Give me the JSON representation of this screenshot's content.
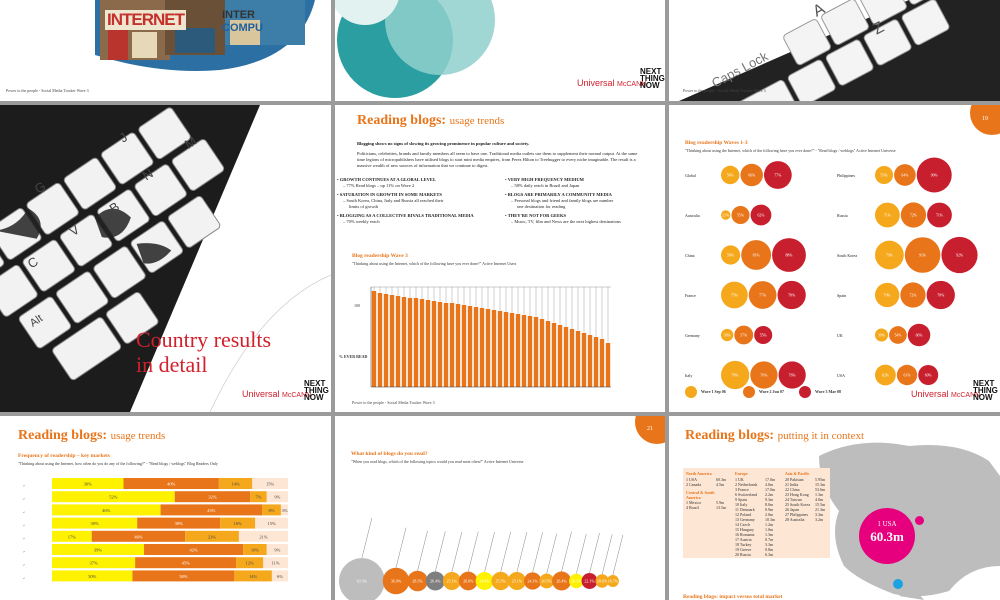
{
  "common": {
    "footer": "Power to the people - Social Media Tracker Wave 3",
    "logo_main": "Universal",
    "logo_sub": "McCANN",
    "ntn": [
      "NEXT",
      "THING",
      "NOW"
    ]
  },
  "slide1": {
    "sign_big": "INTERNET",
    "sign_side": "INTER",
    "sign_side2": "COMPU"
  },
  "slide3": {
    "keys": [
      "A",
      "Z",
      "Caps Lock"
    ]
  },
  "slide4": {
    "title_line1": "Country results",
    "title_line2": "in detail",
    "keys": [
      "J",
      "M",
      "N",
      "B",
      "G",
      "V",
      "C",
      "Alt"
    ]
  },
  "slide5": {
    "title_main": "Reading blogs:",
    "title_sub": "usage trends",
    "intro_bold": "Blogging shows no signs of slowing its growing prominence in popular culture and society.",
    "intro_text": "Politicians, celebrities, brands and family members all seem to have one. Traditional media outlets use them to supplement their normal output. At the same time legions of micropublishers have utilised blogs to start mini media empires, from Perez Hilton to Treehugger to every niche imaginable. The result is a massive wealth of new sources of information that we continue to digest.",
    "bullets_left": [
      {
        "head": "GROWTH CONTINUES AT A GLOBAL LEVEL",
        "items": [
          "77% Read blogs – up 11% on Wave 2"
        ]
      },
      {
        "head": "SATURATION IN GROWTH IN SOME MARKETS",
        "items": [
          "South Korea, China, Italy and Russia all reached their",
          "limits of growth"
        ]
      },
      {
        "head": "BLOGGING AS A COLLECTIVE RIVALS TRADITIONAL MEDIA",
        "items": [
          "70% weekly reach"
        ]
      }
    ],
    "bullets_right": [
      {
        "head": "VERY HIGH FREQUENCY MEDIUM",
        "items": [
          "58% daily reach in Brazil and Japan"
        ]
      },
      {
        "head": "BLOGS ARE PRIMARILY A COMMUNITY MEDIA",
        "items": [
          "Personal blogs and friend and family blogs are number",
          "one destination for reading"
        ]
      },
      {
        "head": "THEY'RE NOT FOR GEEKS",
        "items": [
          "Music, TV, film and News are the next highest destinations"
        ]
      }
    ],
    "chart_title": "Blog readership Wave 3",
    "chart_question": "\"Thinking about using the Internet, which of the following have you ever done?\" Active Internet Users",
    "y_top": "100",
    "y_label": "% EVER READ"
  },
  "chart_data": [
    {
      "type": "bar",
      "title": "Blog readership Wave 3",
      "ylabel": "% EVER READ",
      "ylim": [
        0,
        100
      ],
      "values": [
        96,
        94,
        93,
        92,
        91,
        90,
        89,
        89,
        88,
        87,
        86,
        85,
        84,
        84,
        83,
        82,
        81,
        80,
        79,
        78,
        77,
        76,
        75,
        74,
        73,
        72,
        71,
        70,
        68,
        66,
        64,
        62,
        60,
        58,
        56,
        54,
        52,
        50,
        48,
        44
      ]
    },
    {
      "type": "scatter",
      "title": "Blog readership Waves 1-3",
      "legend": [
        "Wave 1 Sep 06",
        "Wave 2 Jun 07",
        "Wave 3 Mar 08"
      ],
      "countries": [
        {
          "name": "Global",
          "values": [
            56,
            66,
            77
          ]
        },
        {
          "name": "Australia",
          "values": [
            21,
            55,
            62
          ]
        },
        {
          "name": "China",
          "values": [
            58,
            81,
            88
          ]
        },
        {
          "name": "France",
          "values": [
            75,
            77,
            78
          ]
        },
        {
          "name": "Germany",
          "values": [
            36,
            57,
            55
          ]
        },
        {
          "name": "Italy",
          "values": [
            78,
            76,
            76
          ]
        },
        {
          "name": "Philippines",
          "values": [
            55,
            64,
            90
          ]
        },
        {
          "name": "Russia",
          "values": [
            71,
            72,
            71
          ]
        },
        {
          "name": "South Korea",
          "values": [
            79,
            91,
            92
          ]
        },
        {
          "name": "Spain",
          "values": [
            70,
            72,
            78
          ]
        },
        {
          "name": "UK",
          "values": [
            39,
            54,
            66
          ]
        },
        {
          "name": "USA",
          "values": [
            62,
            61,
            60
          ]
        }
      ]
    },
    {
      "type": "bar",
      "title": "Frequency of readership – key markets",
      "rows": [
        [
          30,
          40,
          14,
          15
        ],
        [
          52,
          32,
          7,
          9
        ],
        [
          46,
          43,
          8,
          3
        ],
        [
          39,
          38,
          16,
          15
        ],
        [
          17,
          40,
          23,
          21
        ],
        [
          39,
          42,
          10,
          9
        ],
        [
          37,
          45,
          12,
          11
        ],
        [
          30,
          38,
          14,
          6
        ]
      ]
    },
    {
      "type": "scatter",
      "title": "What kind of blogs do you read?",
      "values": [
        63.5,
        36.9,
        28.5,
        26.4,
        25.1,
        26.0,
        24.9,
        25.5,
        25.1,
        24.1,
        20.5,
        26.4,
        20.1,
        22.1,
        18.6,
        16.7
      ]
    }
  ],
  "slide6": {
    "page": "19",
    "title": "Blog readership Waves 1-3",
    "question": "\"Thinking about using the Internet, which of the following have you ever done?\" - \"Read blogs / weblogs\" Active Internet Universe",
    "legend": [
      "Wave 1 Sep 06",
      "Wave 2 Jun 07",
      "Wave 3 Mar 08"
    ],
    "labels": {
      "Global": [
        "56%",
        "66%",
        "77%"
      ],
      "Australia": [
        "21%",
        "55%",
        "62%"
      ],
      "China": [
        "58%",
        "81%",
        "88%"
      ],
      "France": [
        "75%",
        "77%",
        "78%"
      ],
      "Germany": [
        "36%",
        "57%",
        "55%"
      ],
      "Italy": [
        "78%",
        "76%",
        "76%"
      ],
      "Philippines": [
        "55%",
        "64%",
        "90%"
      ],
      "Russia": [
        "71%",
        "72%",
        "71%"
      ],
      "South Korea": [
        "79%",
        "91%",
        "92%"
      ],
      "Spain": [
        "70%",
        "72%",
        "78%"
      ],
      "UK": [
        "39%",
        "54%",
        "66%"
      ],
      "USA": [
        "62%",
        "61%",
        "60%"
      ]
    }
  },
  "slide7": {
    "title_main": "Reading blogs:",
    "title_sub": "usage trends",
    "subtitle": "Frequency of readership – key markets",
    "question": "\"Thinking about using the Internet, how often do you do any of the following?\" - \"Read blogs / weblogs\" Blog Readers Only",
    "rows": [
      {
        "labels": [
          "30%",
          "40%",
          "14%",
          "15%"
        ]
      },
      {
        "labels": [
          "52%",
          "32%",
          "7%",
          "9%"
        ]
      },
      {
        "labels": [
          "46%",
          "43%",
          "8%",
          "3%"
        ]
      },
      {
        "labels": [
          "39%",
          "38%",
          "16%",
          "15%"
        ]
      },
      {
        "labels": [
          "17%",
          "40%",
          "23%",
          "21%"
        ]
      },
      {
        "labels": [
          "39%",
          "42%",
          "10%",
          "9%"
        ]
      },
      {
        "labels": [
          "37%",
          "45%",
          "12%",
          "11%"
        ]
      },
      {
        "labels": [
          "30%",
          "38%",
          "14%",
          "6%"
        ]
      }
    ]
  },
  "slide8": {
    "page": "21",
    "title": "What kind of blogs do you read?",
    "question": "\"When you read blogs, which of the following topics would you read most often?\" Active Internet Universe",
    "bubble_labels": [
      "63.5%",
      "36.9%",
      "28.5%",
      "26.4%",
      "25.1%",
      "26.0%",
      "24.9%",
      "25.5%",
      "25.1%",
      "24.1%",
      "20.5%",
      "26.4%",
      "20.1%",
      "22.1%",
      "18.6%",
      "16.7%"
    ]
  },
  "slide9": {
    "title_main": "Reading blogs:",
    "title_sub": "putting it in context",
    "na_head": "North America",
    "na": [
      [
        "1 USA",
        "60.3m"
      ],
      [
        "2 Canada",
        "4.5m"
      ]
    ],
    "ca_head": "Central & South America",
    "ca": [
      [
        "1 Mexico",
        "5.9m"
      ],
      [
        "4 Brazil",
        "13.5m"
      ]
    ],
    "eu_head": "Europe",
    "eu": [
      [
        "1 UK",
        "17.0m"
      ],
      [
        "2 Netherlands",
        "4.0m"
      ],
      [
        "3 France",
        "17.0m"
      ],
      [
        "6 Switzerland",
        "2.2m"
      ],
      [
        "9 Spain",
        "9.3m"
      ],
      [
        "10 Italy",
        "8.0m"
      ],
      [
        "11 Denmark",
        "0.9m"
      ],
      [
        "12 Poland",
        "2.0m"
      ],
      [
        "13 Germany",
        "10.3m"
      ],
      [
        "14 Czech",
        "1.2m"
      ],
      [
        "15 Hungary",
        "1.0m"
      ],
      [
        "16 Romania",
        "1.3m"
      ],
      [
        "17 Austria",
        "0.7m"
      ],
      [
        "18 Turkey",
        "3.3m"
      ],
      [
        "19 Greece",
        "0.8m"
      ],
      [
        "20 Russia",
        "6.3m"
      ]
    ],
    "as_head": "Asia & Pacific",
    "as": [
      [
        "20 Pakistan",
        "5.95m"
      ],
      [
        "21 India",
        "15.3m"
      ],
      [
        "22 China",
        "53.6m"
      ],
      [
        "23 Hong Kong",
        "1.3m"
      ],
      [
        "24 Taiwan",
        "4.0m"
      ],
      [
        "25 South Korea",
        "15.5m"
      ],
      [
        "26 Japan",
        "21.3m"
      ],
      [
        "27 Philippines",
        "3.3m"
      ],
      [
        "28 Australia",
        "3.2m"
      ]
    ],
    "callout_rank": "1 USA",
    "callout_value": "60.3m",
    "bottom": "Reading blogs: impact versus total market"
  }
}
